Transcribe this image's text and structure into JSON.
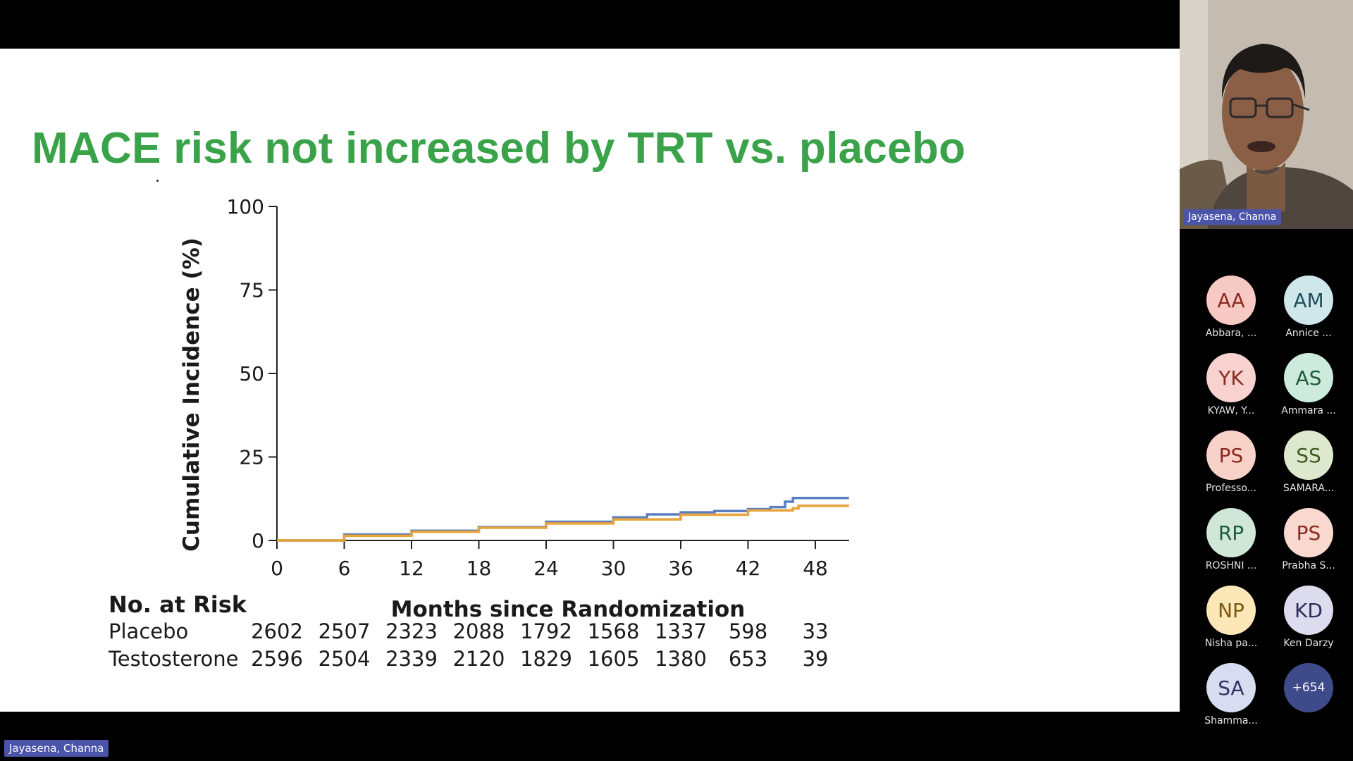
{
  "slide": {
    "title": "MACE risk not increased by TRT vs. placebo"
  },
  "chart_data": {
    "type": "line",
    "title": "",
    "xlabel": "Months since Randomization",
    "ylabel": "Cumulative Incidence (%)",
    "xlim": [
      0,
      51
    ],
    "ylim": [
      0,
      100
    ],
    "x_ticks": [
      0,
      6,
      12,
      18,
      24,
      30,
      36,
      42,
      48
    ],
    "y_ticks": [
      0,
      25,
      50,
      75,
      100
    ],
    "series": [
      {
        "color": "#5b7fbf",
        "x": [
          0,
          6,
          12,
          18,
          24,
          30,
          33,
          36,
          39,
          42,
          44,
          45.3,
          46,
          51
        ],
        "y": [
          0,
          1.8,
          2.9,
          4.0,
          5.6,
          6.9,
          7.8,
          8.4,
          8.8,
          9.4,
          10.0,
          11.6,
          12.7,
          12.7
        ]
      },
      {
        "color": "#e8a33a",
        "x": [
          0,
          6,
          12,
          18,
          24,
          30,
          36,
          42,
          46,
          46.5,
          51
        ],
        "y": [
          0,
          1.4,
          2.6,
          3.8,
          5.1,
          6.3,
          7.7,
          9.0,
          9.6,
          10.4,
          10.4
        ]
      }
    ]
  },
  "at_risk": {
    "title": "No. at Risk",
    "rows": [
      {
        "label": "Placebo",
        "values": [
          "2602",
          "2507",
          "2323",
          "2088",
          "1792",
          "1568",
          "1337",
          "598",
          "33"
        ]
      },
      {
        "label": "Testosterone",
        "values": [
          "2596",
          "2504",
          "2339",
          "2120",
          "1829",
          "1605",
          "1380",
          "653",
          "39"
        ]
      }
    ]
  },
  "toolbar": {
    "icons": [
      "arrow-left-icon",
      "pen-icon",
      "magnifier-icon",
      "closed-caption-icon",
      "video-camera-icon",
      "more-options-icon",
      "arrow-right-icon"
    ]
  },
  "presenter": {
    "name": "Jayasena, Channa"
  },
  "participants": [
    {
      "initials": "AA",
      "name": "Abbara, ...",
      "bg": "#f6c9c4",
      "fg": "#8a2a22"
    },
    {
      "initials": "AM",
      "name": "Annice ...",
      "bg": "#cfe6ea",
      "fg": "#1f4f5a"
    },
    {
      "initials": "YK",
      "name": "KYAW, Y...",
      "bg": "#f8d2cf",
      "fg": "#8a2a22"
    },
    {
      "initials": "AS",
      "name": "Ammara ...",
      "bg": "#cdebdc",
      "fg": "#1f5a3c"
    },
    {
      "initials": "PS",
      "name": "Professo...",
      "bg": "#f8d2c8",
      "fg": "#8a2a22"
    },
    {
      "initials": "SS",
      "name": "SAMARA...",
      "bg": "#dde8cf",
      "fg": "#3d5a1f"
    },
    {
      "initials": "RP",
      "name": "ROSHNI ...",
      "bg": "#cfe6d8",
      "fg": "#1f5a3c"
    },
    {
      "initials": "PS",
      "name": "Prabha S...",
      "bg": "#f8d8cf",
      "fg": "#8a2a22"
    },
    {
      "initials": "NP",
      "name": "Nisha pa...",
      "bg": "#fbe7b8",
      "fg": "#7a5a10"
    },
    {
      "initials": "KD",
      "name": "Ken Darzy",
      "bg": "#dcdcee",
      "fg": "#2e2e5a"
    },
    {
      "initials": "SA",
      "name": "Shamma...",
      "bg": "#d8dcf0",
      "fg": "#2e3460"
    }
  ],
  "more_participants": "+654"
}
